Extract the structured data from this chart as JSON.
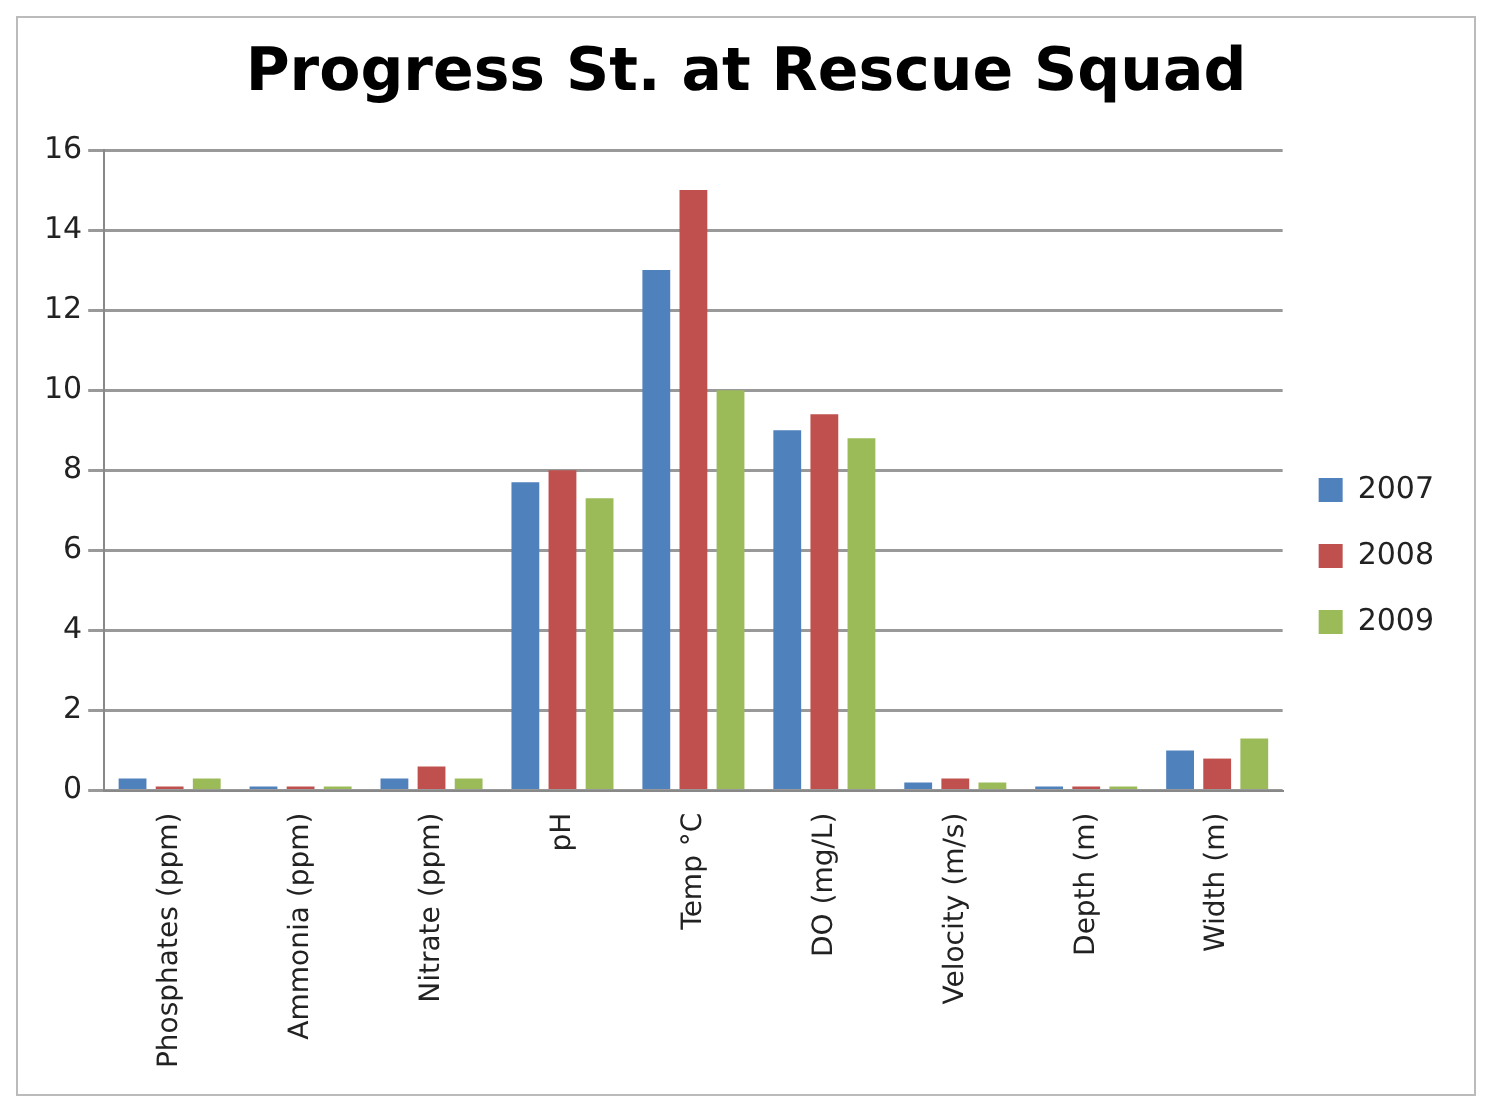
{
  "chart_data": {
    "type": "bar",
    "title": "Progress St. at Rescue Squad",
    "categories": [
      "Phosphates (ppm)",
      "Ammonia (ppm)",
      "Nitrate (ppm)",
      "pH",
      "Temp °C",
      "DO (mg/L)",
      "Velocity (m/s)",
      "Depth (m)",
      "Width (m)"
    ],
    "series": [
      {
        "name": "2007",
        "color": "#4f81bd",
        "values": [
          0.3,
          0.1,
          0.3,
          7.7,
          13.0,
          9.0,
          0.2,
          0.1,
          1.0
        ]
      },
      {
        "name": "2008",
        "color": "#c0504d",
        "values": [
          0.1,
          0.1,
          0.6,
          8.0,
          15.0,
          9.4,
          0.3,
          0.1,
          0.8
        ]
      },
      {
        "name": "2009",
        "color": "#9bbb59",
        "values": [
          0.3,
          0.1,
          0.3,
          7.3,
          10.0,
          8.8,
          0.2,
          0.1,
          1.3
        ]
      }
    ],
    "ylim": [
      0,
      16
    ],
    "yticks": [
      0,
      2,
      4,
      6,
      8,
      10,
      12,
      14,
      16
    ],
    "grid": "y",
    "legend": "right"
  }
}
